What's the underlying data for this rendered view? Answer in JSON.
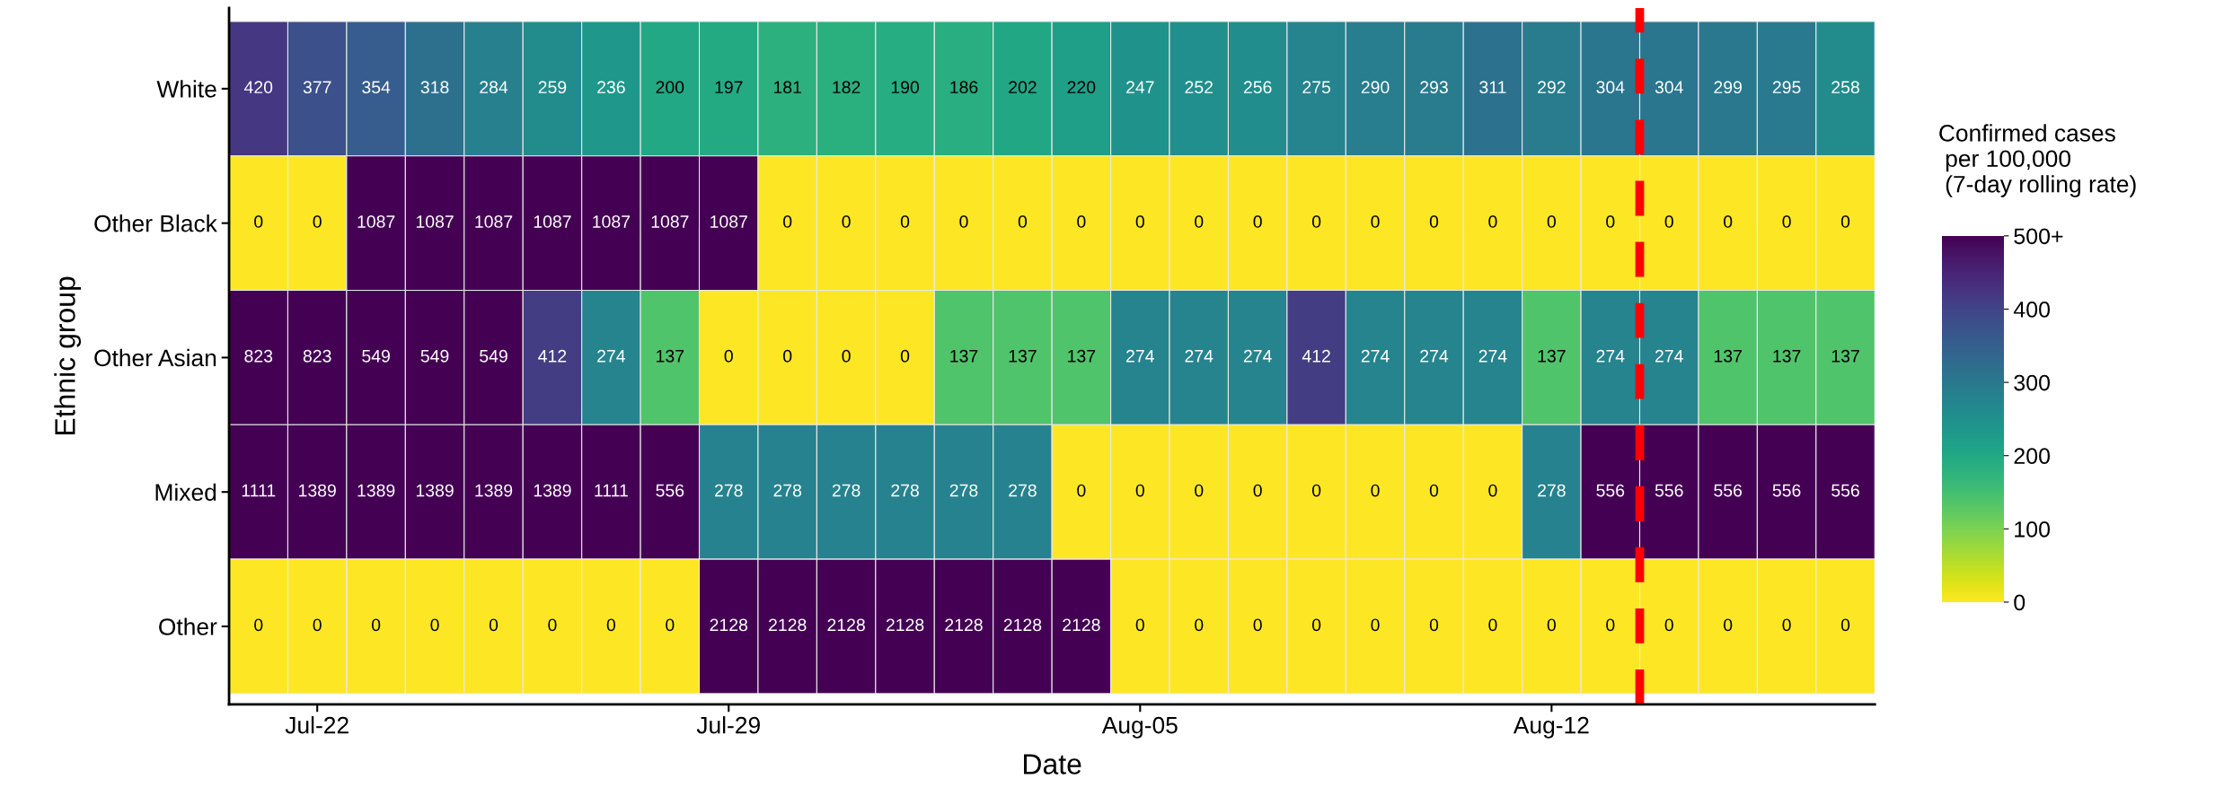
{
  "chart_data": {
    "type": "heatmap",
    "xlabel": "Date",
    "ylabel": "Ethnic group",
    "clabel": "Confirmed cases\n per 100,000\n (7-day rolling rate)",
    "categories": [
      null,
      "Jul-22",
      null,
      null,
      null,
      null,
      null,
      null,
      "Jul-29",
      null,
      null,
      null,
      null,
      null,
      null,
      "Aug-05",
      null,
      null,
      null,
      null,
      null,
      null,
      "Aug-12",
      null,
      null,
      null,
      null,
      null
    ],
    "y_categories": [
      "White",
      "Other Black",
      "Other Asian",
      "Mixed",
      "Other"
    ],
    "cells": [
      [
        420,
        377,
        354,
        318,
        284,
        259,
        236,
        200,
        197,
        181,
        182,
        190,
        186,
        202,
        220,
        247,
        252,
        256,
        275,
        290,
        293,
        311,
        292,
        304,
        304,
        299,
        295,
        258
      ],
      [
        0,
        0,
        1087,
        1087,
        1087,
        1087,
        1087,
        1087,
        1087,
        0,
        0,
        0,
        0,
        0,
        0,
        0,
        0,
        0,
        0,
        0,
        0,
        0,
        0,
        0,
        0,
        0,
        0,
        0
      ],
      [
        823,
        823,
        549,
        549,
        549,
        412,
        274,
        137,
        0,
        0,
        0,
        0,
        137,
        137,
        137,
        274,
        274,
        274,
        412,
        274,
        274,
        274,
        137,
        274,
        274,
        137,
        137,
        137
      ],
      [
        1111,
        1389,
        1389,
        1389,
        1389,
        1389,
        1111,
        556,
        278,
        278,
        278,
        278,
        278,
        278,
        0,
        0,
        0,
        0,
        0,
        0,
        0,
        0,
        278,
        556,
        556,
        556,
        556,
        556
      ],
      [
        0,
        0,
        0,
        0,
        0,
        0,
        0,
        0,
        2128,
        2128,
        2128,
        2128,
        2128,
        2128,
        2128,
        0,
        0,
        0,
        0,
        0,
        0,
        0,
        0,
        0,
        0,
        0,
        0,
        0
      ]
    ],
    "data_labels": true,
    "clim": [
      0,
      500
    ],
    "cticks": [
      0,
      100,
      200,
      300,
      400,
      {
        "value": 500,
        "label": "500+"
      }
    ]
  }
}
